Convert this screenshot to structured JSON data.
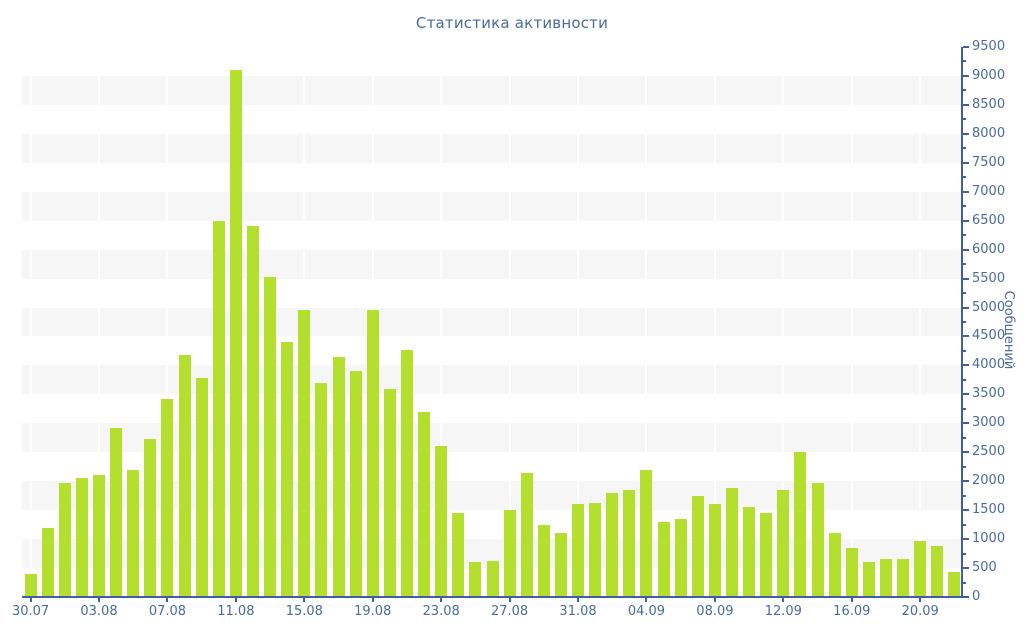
{
  "title": "Статистика активности",
  "chart_data": {
    "type": "bar",
    "title": "Статистика активности",
    "xlabel": "",
    "ylabel": "Сообщений",
    "ylim": [
      0,
      9500
    ],
    "y_tick_step": 500,
    "y_minor_tick_step": 250,
    "y_axis_position": "right",
    "grid": "alternating-horizontal-bands-500",
    "legend": false,
    "x_tick_every": 4,
    "x_tick_labels": [
      "30.07",
      "03.08",
      "07.08",
      "11.08",
      "15.08",
      "19.08",
      "23.08",
      "27.08",
      "31.08",
      "04.09",
      "08.09",
      "12.09",
      "16.09",
      "20.09"
    ],
    "categories": [
      "30.07",
      "31.07",
      "01.08",
      "02.08",
      "03.08",
      "04.08",
      "05.08",
      "06.08",
      "07.08",
      "08.08",
      "09.08",
      "10.08",
      "11.08",
      "12.08",
      "13.08",
      "14.08",
      "15.08",
      "16.08",
      "17.08",
      "18.08",
      "19.08",
      "20.08",
      "21.08",
      "22.08",
      "23.08",
      "24.08",
      "25.08",
      "26.08",
      "27.08",
      "28.08",
      "29.08",
      "30.08",
      "31.08",
      "01.09",
      "02.09",
      "03.09",
      "04.09",
      "05.09",
      "06.09",
      "07.09",
      "08.09",
      "09.09",
      "10.09",
      "11.09",
      "12.09",
      "13.09",
      "14.09",
      "15.09",
      "16.09",
      "17.09",
      "18.09",
      "19.09",
      "20.09",
      "21.09",
      "22.09"
    ],
    "values": [
      400,
      1200,
      1975,
      2050,
      2100,
      2925,
      2200,
      2725,
      3425,
      4175,
      3775,
      6500,
      9100,
      6400,
      5525,
      4400,
      4950,
      3700,
      4150,
      3900,
      4950,
      3600,
      4275,
      3200,
      2600,
      1450,
      600,
      625,
      1500,
      2150,
      1250,
      1100,
      1600,
      1625,
      1800,
      1850,
      2200,
      1300,
      1350,
      1750,
      1600,
      1875,
      1550,
      1450,
      1850,
      2500,
      1975,
      1100,
      850,
      600,
      650,
      650,
      975,
      875,
      425
    ],
    "colors": {
      "bar": "#b5df2e",
      "band": "#f6f6f6",
      "axis": "#3e5fa3",
      "text": "#4a6b9e",
      "background": "#ffffff"
    }
  }
}
